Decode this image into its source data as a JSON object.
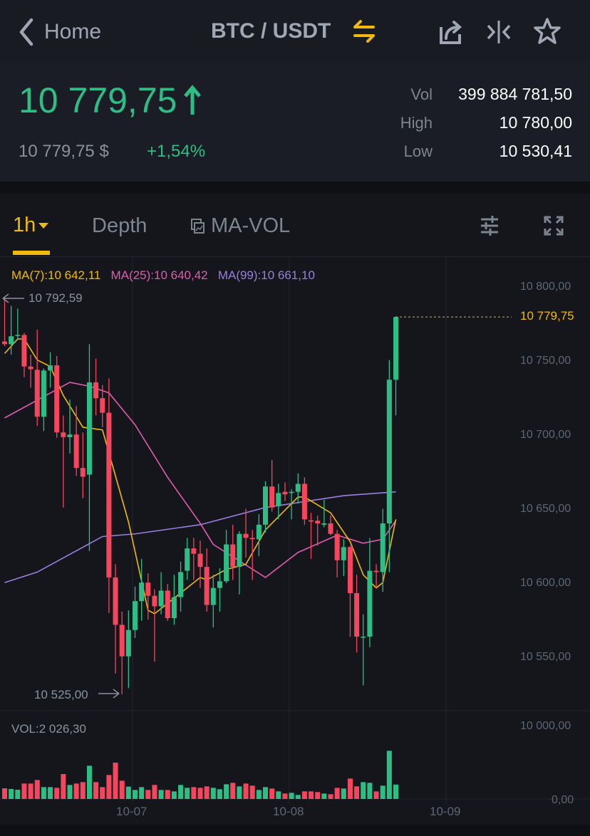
{
  "header": {
    "back_label": "Home",
    "pair": "BTC / USDT",
    "icons": [
      "chevron-left-icon",
      "swap-icon",
      "share-icon",
      "split-icon",
      "star-icon"
    ]
  },
  "price": {
    "last": "10 779,75",
    "fiat": "10 779,75 $",
    "change": "+1,54%",
    "stats": [
      {
        "label": "Vol",
        "value": "399 884 781,50"
      },
      {
        "label": "High",
        "value": "10 780,00"
      },
      {
        "label": "Low",
        "value": "10 530,41"
      }
    ]
  },
  "tabs": {
    "interval": "1h",
    "depth": "Depth",
    "indicator": "MA-VOL"
  },
  "colors": {
    "up": "#2ebd85",
    "down": "#f6465d",
    "accent": "#f0b90b",
    "ma7": "#f0b90b",
    "ma25": "#e35bb0",
    "ma99": "#9b7fe0"
  },
  "chart_data": {
    "type": "candlestick",
    "legend": {
      "ma7": "MA(7):10 642,11",
      "ma25": "MA(25):10 640,42",
      "ma99": "MA(99):10 661,10"
    },
    "y_ticks": [
      "10 800,00",
      "10 750,00",
      "10 700,00",
      "10 650,00",
      "10 600,00",
      "10 550,00"
    ],
    "y_tick_values": [
      10800,
      10750,
      10700,
      10650,
      10600,
      10550
    ],
    "ylim": [
      10530,
      10810
    ],
    "x_ticks": [
      "10-07",
      "10-08",
      "10-09"
    ],
    "max_label": "10 792,59",
    "min_label": "10 525,00",
    "last_label": "10 779,75",
    "last_value": 10779.75,
    "ohlc": [
      [
        10763.2,
        10792.59,
        10760.1,
        10761.4
      ],
      [
        10761.4,
        10787.2,
        10754.3,
        10766.7
      ],
      [
        10767.1,
        10785.4,
        10764.0,
        10767.6
      ],
      [
        10767.6,
        10769.0,
        10739.1,
        10746.3
      ],
      [
        10746.3,
        10754.3,
        10732.0,
        10744.5
      ],
      [
        10744.1,
        10771.2,
        10706.2,
        10712.4
      ],
      [
        10712.4,
        10745.0,
        10702.7,
        10743.6
      ],
      [
        10743.6,
        10756.0,
        10732.0,
        10747.1
      ],
      [
        10747.1,
        10753.4,
        10698.2,
        10701.8
      ],
      [
        10701.8,
        10713.3,
        10651.1,
        10698.6
      ],
      [
        10698.6,
        10724.0,
        10687.5,
        10700.4
      ],
      [
        10700.4,
        10719.6,
        10672.4,
        10677.8
      ],
      [
        10677.8,
        10701.8,
        10657.3,
        10671.9
      ],
      [
        10673.3,
        10761.4,
        10621.7,
        10735.6
      ],
      [
        10735.6,
        10751.6,
        10713.3,
        10724.9
      ],
      [
        10724.9,
        10733.8,
        10705.3,
        10715.1
      ],
      [
        10715.1,
        10738.2,
        10579.9,
        10603.9
      ],
      [
        10603.9,
        10612.8,
        10539.0,
        10571.9
      ],
      [
        10571.9,
        10580.8,
        10525.0,
        10550.6
      ],
      [
        10550.6,
        10581.7,
        10529.2,
        10568.4
      ],
      [
        10568.4,
        10597.7,
        10563.0,
        10587.9
      ],
      [
        10587.9,
        10616.4,
        10574.6,
        10600.4
      ],
      [
        10600.4,
        10606.6,
        10575.5,
        10591.5
      ],
      [
        10591.5,
        10595.9,
        10547.0,
        10584.4
      ],
      [
        10584.4,
        10607.5,
        10579.0,
        10595.0
      ],
      [
        10595.0,
        10599.5,
        10574.6,
        10576.4
      ],
      [
        10576.4,
        10605.7,
        10571.9,
        10590.6
      ],
      [
        10590.6,
        10614.6,
        10580.8,
        10607.5
      ],
      [
        10608.4,
        10630.6,
        10602.2,
        10623.5
      ],
      [
        10623.5,
        10630.6,
        10602.2,
        10619.9
      ],
      [
        10619.9,
        10628.8,
        10596.8,
        10611.0
      ],
      [
        10611.0,
        10623.5,
        10580.8,
        10585.3
      ],
      [
        10585.3,
        10605.7,
        10570.1,
        10596.8
      ],
      [
        10596.8,
        10610.2,
        10580.8,
        10601.3
      ],
      [
        10601.3,
        10636.0,
        10600.0,
        10626.2
      ],
      [
        10626.2,
        10639.5,
        10602.2,
        10611.0
      ],
      [
        10611.0,
        10635.1,
        10592.4,
        10633.3
      ],
      [
        10633.3,
        10650.2,
        10617.3,
        10630.6
      ],
      [
        10630.6,
        10636.0,
        10602.2,
        10629.7
      ],
      [
        10629.7,
        10646.6,
        10618.2,
        10639.5
      ],
      [
        10639.5,
        10668.9,
        10634.2,
        10665.3
      ],
      [
        10665.3,
        10683.1,
        10648.4,
        10651.1
      ],
      [
        10652.0,
        10667.1,
        10643.1,
        10660.9
      ],
      [
        10661.7,
        10668.0,
        10655.5,
        10660.0
      ],
      [
        10660.9,
        10663.5,
        10643.1,
        10661.7
      ],
      [
        10661.7,
        10674.2,
        10653.7,
        10667.1
      ],
      [
        10667.1,
        10671.5,
        10639.5,
        10643.1
      ],
      [
        10642.5,
        10647.5,
        10616.4,
        10641.6
      ],
      [
        10642.2,
        10645.7,
        10625.3,
        10640.4
      ],
      [
        10639.5,
        10656.4,
        10637.7,
        10640.4
      ],
      [
        10640.4,
        10645.7,
        10632.4,
        10633.3
      ],
      [
        10633.3,
        10636.0,
        10603.9,
        10615.5
      ],
      [
        10615.5,
        10629.7,
        10604.8,
        10624.4
      ],
      [
        10624.4,
        10625.3,
        10563.9,
        10593.3
      ],
      [
        10593.3,
        10605.7,
        10553.2,
        10563.9
      ],
      [
        10563.4,
        10579.0,
        10531.0,
        10563.9
      ],
      [
        10563.9,
        10630.6,
        10556.8,
        10608.4
      ],
      [
        10608.4,
        10612.8,
        10596.8,
        10607.5
      ],
      [
        10607.5,
        10650.2,
        10594.1,
        10640.4
      ],
      [
        10640.4,
        10750.7,
        10607.5,
        10737.4
      ],
      [
        10737.4,
        10780.0,
        10713.3,
        10779.75
      ]
    ],
    "ma7": [
      [
        0,
        10755.1
      ],
      [
        2,
        10764.9
      ],
      [
        3,
        10764.9
      ],
      [
        5,
        10750.7
      ],
      [
        7,
        10746.3
      ],
      [
        9,
        10726.7
      ],
      [
        12,
        10705.3
      ],
      [
        15,
        10703.5
      ],
      [
        19,
        10641.3
      ],
      [
        22,
        10581.7
      ],
      [
        23,
        10579.4
      ],
      [
        30,
        10603.9
      ],
      [
        31,
        10602.2
      ],
      [
        34,
        10609.3
      ],
      [
        37,
        10612.8
      ],
      [
        40,
        10636.0
      ],
      [
        45,
        10658.2
      ],
      [
        46,
        10658.2
      ],
      [
        50,
        10647.5
      ],
      [
        53,
        10628.0
      ],
      [
        55,
        10605.7
      ],
      [
        57,
        10596.8
      ],
      [
        58,
        10600.4
      ],
      [
        60,
        10643.1
      ]
    ],
    "ma25": [
      [
        0,
        10711.6
      ],
      [
        10,
        10735.6
      ],
      [
        13,
        10733.0
      ],
      [
        16,
        10728.5
      ],
      [
        20,
        10707.0
      ],
      [
        25,
        10671.5
      ],
      [
        30,
        10640.4
      ],
      [
        32,
        10626.2
      ],
      [
        40,
        10603.9
      ],
      [
        45,
        10620.8
      ],
      [
        51,
        10632.4
      ],
      [
        55,
        10627.0
      ],
      [
        58,
        10629.7
      ],
      [
        60,
        10642.2
      ]
    ],
    "ma99": [
      [
        0,
        10600.4
      ],
      [
        5,
        10607.5
      ],
      [
        15,
        10631.5
      ],
      [
        20,
        10633.3
      ],
      [
        30,
        10639.5
      ],
      [
        40,
        10651.1
      ],
      [
        52,
        10659.1
      ],
      [
        60,
        10661.7
      ]
    ],
    "volume": {
      "label": "VOL:2 026,30",
      "y_ticks": [
        "10 000,00",
        "0,00"
      ],
      "y_tick_values": [
        10000,
        0
      ],
      "values": [
        1500,
        1400,
        1300,
        2167,
        2167,
        2667,
        1667,
        1667,
        1567,
        3500,
        1967,
        2167,
        2367,
        4667,
        2367,
        1667,
        3367,
        5100,
        2567,
        1733,
        1267,
        1667,
        1267,
        1967,
        1267,
        1267,
        1067,
        1967,
        1567,
        1667,
        1567,
        1767,
        1567,
        1367,
        2067,
        2267,
        1767,
        2167,
        1867,
        1267,
        1667,
        1467,
        1067,
        767,
        867,
        567,
        1067,
        1067,
        967,
        767,
        667,
        1567,
        1467,
        2867,
        1767,
        2367,
        2267,
        1067,
        1867,
        6767,
        2026
      ]
    }
  }
}
